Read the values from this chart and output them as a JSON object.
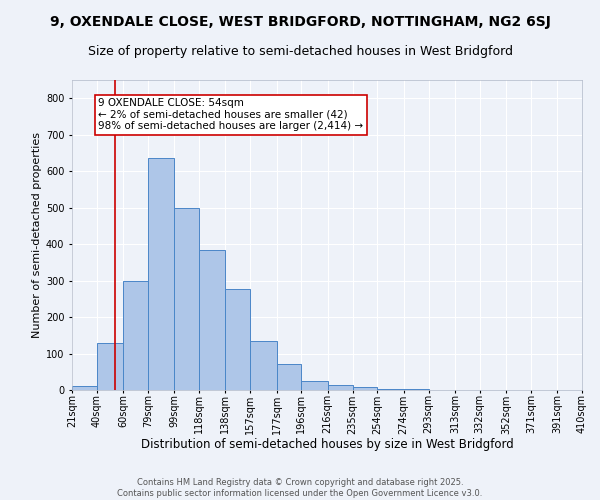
{
  "title": "9, OXENDALE CLOSE, WEST BRIDGFORD, NOTTINGHAM, NG2 6SJ",
  "subtitle": "Size of property relative to semi-detached houses in West Bridgford",
  "xlabel": "Distribution of semi-detached houses by size in West Bridgford",
  "ylabel": "Number of semi-detached properties",
  "bin_labels": [
    "21sqm",
    "40sqm",
    "60sqm",
    "79sqm",
    "99sqm",
    "118sqm",
    "138sqm",
    "157sqm",
    "177sqm",
    "196sqm",
    "216sqm",
    "235sqm",
    "254sqm",
    "274sqm",
    "293sqm",
    "313sqm",
    "332sqm",
    "352sqm",
    "371sqm",
    "391sqm",
    "410sqm"
  ],
  "bin_edges": [
    21,
    40,
    60,
    79,
    99,
    118,
    138,
    157,
    177,
    196,
    216,
    235,
    254,
    274,
    293,
    313,
    332,
    352,
    371,
    391,
    410
  ],
  "bar_values": [
    10,
    130,
    300,
    635,
    500,
    385,
    278,
    133,
    70,
    25,
    13,
    7,
    4,
    4,
    0,
    0,
    0,
    0,
    0,
    0
  ],
  "bar_color": "#aec6e8",
  "bar_edge_color": "#4a86c8",
  "property_line_x": 54,
  "property_line_color": "#cc0000",
  "annotation_text": "9 OXENDALE CLOSE: 54sqm\n← 2% of semi-detached houses are smaller (42)\n98% of semi-detached houses are larger (2,414) →",
  "annotation_box_color": "#ffffff",
  "annotation_box_edge": "#cc0000",
  "ylim": [
    0,
    850
  ],
  "yticks": [
    0,
    100,
    200,
    300,
    400,
    500,
    600,
    700,
    800
  ],
  "background_color": "#eef2f9",
  "grid_color": "#ffffff",
  "footer": "Contains HM Land Registry data © Crown copyright and database right 2025.\nContains public sector information licensed under the Open Government Licence v3.0.",
  "title_fontsize": 10,
  "subtitle_fontsize": 9,
  "xlabel_fontsize": 8.5,
  "ylabel_fontsize": 8,
  "tick_fontsize": 7,
  "annotation_fontsize": 7.5,
  "footer_fontsize": 6
}
